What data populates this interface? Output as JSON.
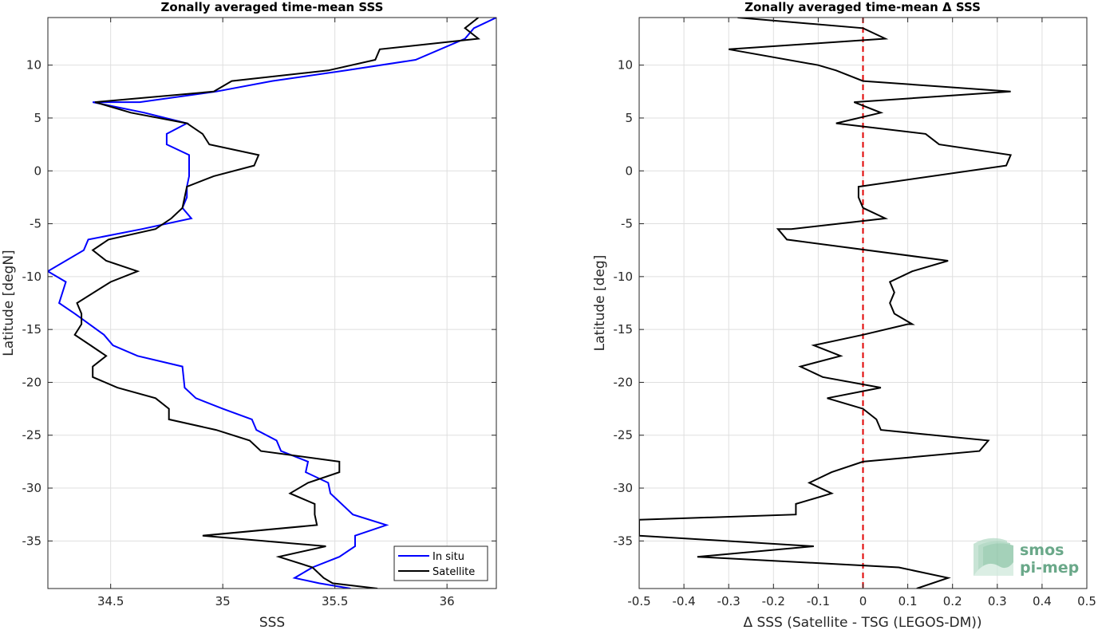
{
  "chart_data": [
    {
      "type": "line",
      "title": "Zonally averaged time-mean SSS",
      "xlabel": "SSS",
      "ylabel": "Latitude [degN]",
      "xlim": [
        34.22,
        36.22
      ],
      "ylim": [
        -39.5,
        14.5
      ],
      "xticks": [
        34.5,
        35,
        35.5,
        36
      ],
      "xtick_labels": [
        "34.5",
        "35",
        "35.5",
        "36"
      ],
      "yticks": [
        -35,
        -30,
        -25,
        -20,
        -15,
        -10,
        -5,
        0,
        5,
        10
      ],
      "ytick_labels": [
        "-35",
        "-30",
        "-25",
        "-20",
        "-15",
        "-10",
        "-5",
        "0",
        "5",
        "10"
      ],
      "grid": true,
      "legend_position": "bottom-right",
      "series": [
        {
          "name": "In situ",
          "color": "#0000ff",
          "x": [
            36.22,
            36.12,
            36.08,
            35.86,
            35.55,
            35.22,
            34.97,
            34.63,
            34.42,
            34.65,
            34.84,
            34.75,
            34.75,
            34.85,
            34.85,
            34.85,
            34.84,
            34.84,
            34.82,
            34.86,
            34.64,
            34.4,
            34.38,
            34.22,
            34.3,
            34.27,
            34.34,
            34.47,
            34.51,
            34.62,
            34.82,
            34.83,
            34.88,
            35.0,
            35.13,
            35.15,
            35.24,
            35.26,
            35.38,
            35.37,
            35.47,
            35.48,
            35.58,
            35.73,
            35.59,
            35.59,
            35.52,
            35.4,
            35.32,
            35.43,
            35.57
          ],
          "y": [
            14.5,
            13.5,
            12.5,
            10.5,
            9.5,
            8.5,
            7.5,
            6.5,
            6.5,
            5.5,
            4.5,
            3.5,
            2.5,
            1.5,
            0.5,
            -0.5,
            -1.5,
            -2.5,
            -3.5,
            -4.5,
            -5.5,
            -6.5,
            -7.5,
            -9.5,
            -10.5,
            -12.5,
            -13.5,
            -15.5,
            -16.5,
            -17.5,
            -18.5,
            -20.5,
            -21.5,
            -22.5,
            -23.5,
            -24.5,
            -25.5,
            -26.5,
            -27.5,
            -28.5,
            -29.5,
            -30.5,
            -32.5,
            -33.5,
            -34.5,
            -35.5,
            -36.5,
            -37.5,
            -38.5,
            -39.0,
            -39.5
          ]
        },
        {
          "name": "Satellite",
          "color": "#000000",
          "x": [
            36.14,
            36.08,
            36.14,
            35.7,
            35.68,
            35.47,
            35.04,
            34.96,
            34.43,
            34.59,
            34.84,
            34.91,
            34.94,
            35.16,
            35.14,
            34.96,
            34.84,
            34.83,
            34.82,
            34.77,
            34.7,
            34.49,
            34.42,
            34.48,
            34.62,
            34.5,
            34.35,
            34.37,
            34.37,
            34.34,
            34.41,
            34.48,
            34.42,
            34.42,
            34.53,
            34.7,
            34.76,
            34.76,
            34.97,
            35.12,
            35.17,
            35.52,
            35.52,
            35.38,
            35.3,
            35.41,
            35.41,
            35.42,
            34.91,
            35.46,
            35.25,
            35.4,
            35.45,
            35.49,
            35.69
          ],
          "y": [
            14.5,
            13.5,
            12.5,
            11.5,
            10.5,
            9.5,
            8.5,
            7.5,
            6.5,
            5.5,
            4.5,
            3.5,
            2.5,
            1.5,
            0.5,
            -0.5,
            -1.5,
            -2.5,
            -3.5,
            -4.5,
            -5.5,
            -6.5,
            -7.5,
            -8.5,
            -9.5,
            -10.5,
            -12.5,
            -13.5,
            -14.5,
            -15.5,
            -16.5,
            -17.5,
            -18.5,
            -19.5,
            -20.5,
            -21.5,
            -22.5,
            -23.5,
            -24.5,
            -25.5,
            -26.5,
            -27.5,
            -28.5,
            -29.5,
            -30.5,
            -31.5,
            -32.5,
            -33.5,
            -34.5,
            -35.5,
            -36.5,
            -37.5,
            -38.5,
            -39.0,
            -39.5
          ]
        }
      ]
    },
    {
      "type": "line",
      "title": "Zonally averaged time-mean Δ SSS",
      "xlabel": "Δ SSS (Satellite - TSG (LEGOS-DM))",
      "ylabel": "Latitude [deg]",
      "xlim": [
        -0.5,
        0.5
      ],
      "ylim": [
        -39.5,
        14.5
      ],
      "xticks": [
        -0.5,
        -0.4,
        -0.3,
        -0.2,
        -0.1,
        0,
        0.1,
        0.2,
        0.3,
        0.4,
        0.5
      ],
      "xtick_labels": [
        "-0.5",
        "-0.4",
        "-0.3",
        "-0.2",
        "-0.1",
        "0",
        "0.1",
        "0.2",
        "0.3",
        "0.4",
        "0.5"
      ],
      "yticks": [
        -35,
        -30,
        -25,
        -20,
        -15,
        -10,
        -5,
        0,
        5,
        10
      ],
      "ytick_labels": [
        "-35",
        "-30",
        "-25",
        "-20",
        "-15",
        "-10",
        "-5",
        "0",
        "5",
        "10"
      ],
      "grid": true,
      "reference_line": {
        "x": 0,
        "color": "#e00000",
        "style": "dashed"
      },
      "series": [
        {
          "color": "#000000",
          "x": [
            -0.28,
            0.0,
            0.05,
            -0.3,
            -0.1,
            -0.06,
            0.0,
            0.33,
            -0.02,
            0.04,
            -0.06,
            0.14,
            0.17,
            0.33,
            0.32,
            -0.01,
            -0.01,
            0.0,
            0.05,
            -0.16,
            -0.19,
            -0.17,
            0.19,
            0.11,
            0.06,
            0.07,
            0.06,
            0.07,
            0.11,
            0.1,
            0.0,
            -0.11,
            -0.05,
            -0.14,
            -0.09,
            0.04,
            -0.08,
            0.0,
            0.03,
            0.04,
            0.28,
            0.26,
            0.0,
            -0.07,
            -0.12,
            -0.07,
            -0.15,
            -0.15,
            -0.5,
            -0.5,
            -0.11,
            -0.37,
            0.08,
            0.19,
            0.12
          ],
          "y": [
            14.5,
            13.5,
            12.5,
            11.5,
            10.0,
            9.5,
            8.5,
            7.5,
            6.5,
            5.5,
            4.5,
            3.5,
            2.5,
            1.5,
            0.5,
            -1.5,
            -2.5,
            -3.5,
            -4.5,
            -5.5,
            -5.5,
            -6.5,
            -8.5,
            -9.5,
            -10.5,
            -11.5,
            -12.5,
            -13.5,
            -14.5,
            -14.5,
            -15.5,
            -16.5,
            -17.5,
            -18.5,
            -19.5,
            -20.5,
            -21.5,
            -22.5,
            -23.5,
            -24.5,
            -25.5,
            -26.5,
            -27.5,
            -28.5,
            -29.5,
            -30.5,
            -31.5,
            -32.5,
            -33.0,
            -34.5,
            -35.5,
            -36.5,
            -37.5,
            -38.5,
            -39.5
          ]
        }
      ]
    }
  ],
  "legend": {
    "in_situ_label": "In situ",
    "satellite_label": "Satellite"
  },
  "logo": {
    "line1": "smos",
    "line2": "pi-mep"
  }
}
